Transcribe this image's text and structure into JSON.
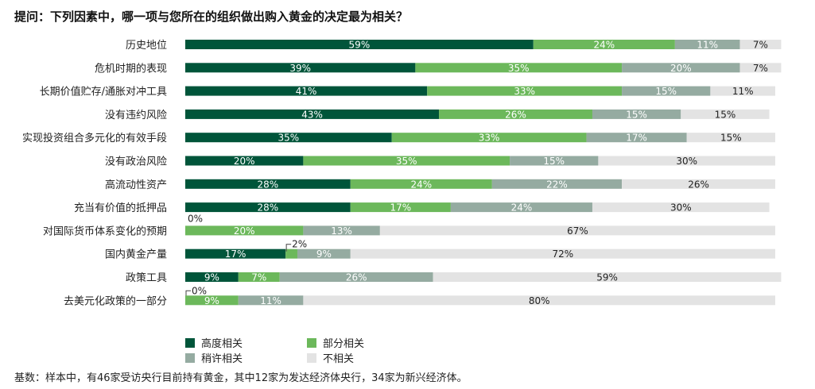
{
  "chart_data": {
    "type": "bar",
    "orientation": "horizontal",
    "stacked": true,
    "title": "提问：下列因素中，哪一项与您所在的组织做出购入黄金的决定最为相关？",
    "categories": [
      "历史地位",
      "危机时期的表现",
      "长期价值贮存/通胀对冲工具",
      "没有违约风险",
      "实现投资组合多元化的有效手段",
      "没有政治风险",
      "高流动性资产",
      "充当有价值的抵押品",
      "对国际货币体系变化的预期",
      "国内黄金产量",
      "政策工具",
      "去美元化政策的一部分"
    ],
    "series": [
      {
        "name": "高度相关",
        "color": "#00553A",
        "values": [
          59,
          39,
          41,
          43,
          35,
          20,
          28,
          28,
          0,
          17,
          9,
          0
        ]
      },
      {
        "name": "部分相关",
        "color": "#6CB85B",
        "values": [
          24,
          35,
          33,
          26,
          33,
          35,
          24,
          17,
          20,
          2,
          7,
          9
        ]
      },
      {
        "name": "稍许相关",
        "color": "#95ABA1",
        "values": [
          11,
          20,
          15,
          15,
          17,
          15,
          22,
          24,
          13,
          9,
          26,
          11
        ]
      },
      {
        "name": "不相关",
        "color": "#E3E3E3",
        "values": [
          7,
          7,
          11,
          15,
          15,
          30,
          26,
          30,
          67,
          72,
          59,
          80
        ]
      }
    ],
    "legend_position": "bottom",
    "grid": false,
    "value_suffix": "%"
  },
  "footnote": "基数：样本中，有46家受访央行目前持有黄金，其中12家为发达经济体央行，34家为新兴经济体。"
}
